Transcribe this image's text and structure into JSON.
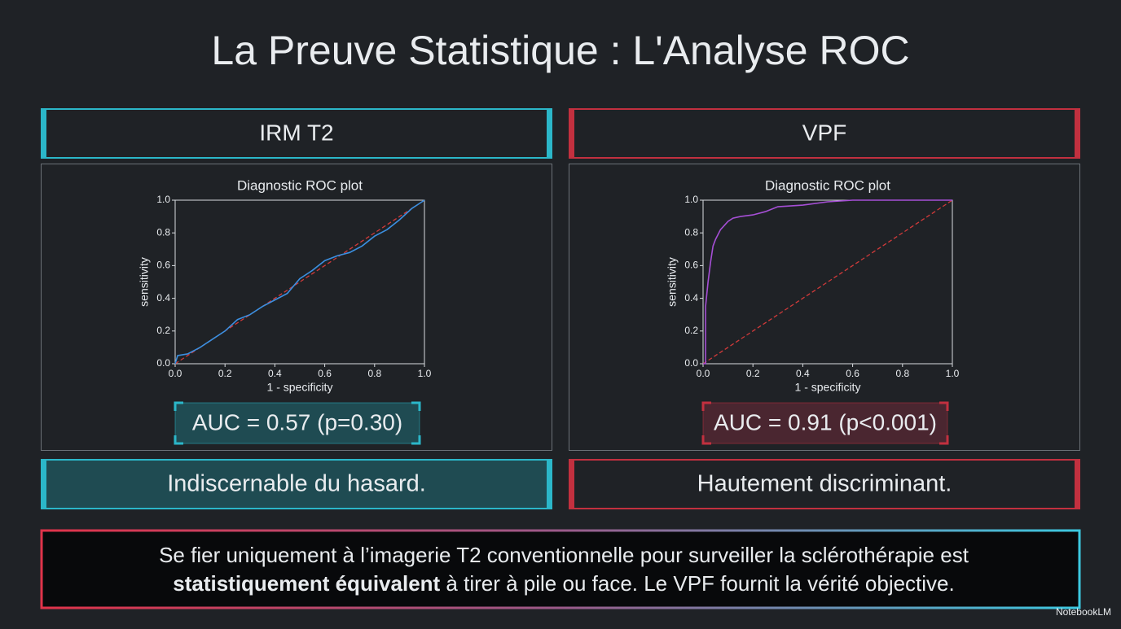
{
  "title": "La Preuve Statistique : L'Analyse ROC",
  "panels": [
    {
      "header": "IRM T2",
      "annotation": "AUC = 0.57 (p=0.30)",
      "verdict": "Indiscernable du hasard.",
      "accent": "#2bb7c9"
    },
    {
      "header": "VPF",
      "annotation": "AUC = 0.91 (p<0.001)",
      "verdict": "Hautement discriminant.",
      "accent": "#c2303f"
    }
  ],
  "conclusion": [
    "Se fier uniquement à l’imagerie T2 conventionnelle pour surveiller la sclérothérapie est",
    "statistiquement équivalent",
    " à tirer à pile ou face. Le VPF fournit la vérité objective."
  ],
  "footer": "NotebookLM",
  "chart_data": [
    {
      "type": "line",
      "title": "Diagnostic ROC plot",
      "x_label": "1 - specificity",
      "y_label": "sensitivity",
      "x": [
        0,
        0.01,
        0.05,
        0.1,
        0.15,
        0.2,
        0.25,
        0.3,
        0.35,
        0.4,
        0.45,
        0.5,
        0.55,
        0.6,
        0.65,
        0.7,
        0.75,
        0.8,
        0.85,
        0.9,
        0.95,
        1
      ],
      "values": [
        0,
        0.05,
        0.06,
        0.1,
        0.15,
        0.2,
        0.27,
        0.3,
        0.35,
        0.39,
        0.43,
        0.52,
        0.57,
        0.63,
        0.66,
        0.68,
        0.72,
        0.78,
        0.82,
        0.88,
        0.95,
        1
      ],
      "color": "#3b8fe0",
      "reference": {
        "x": [
          0,
          1
        ],
        "values": [
          0,
          1
        ],
        "color": "#d13a3a",
        "dashed": true
      },
      "xlim": [
        0,
        1
      ],
      "ylim": [
        0,
        1
      ],
      "xticks": [
        {
          "value": 0,
          "label": "0.0"
        },
        0.2,
        0.4,
        0.6,
        0.8,
        {
          "value": 1,
          "label": "1.0"
        }
      ],
      "yticks": [
        {
          "value": 0,
          "label": "0.0"
        },
        0.2,
        0.4,
        0.6,
        0.8,
        {
          "value": 1,
          "label": "1.0"
        }
      ]
    },
    {
      "type": "line",
      "title": "Diagnostic ROC plot",
      "x_label": "1 - specificity",
      "y_label": "sensitivity",
      "x": [
        0,
        0.01,
        0.01,
        0.02,
        0.03,
        0.04,
        0.05,
        0.07,
        0.1,
        0.12,
        0.15,
        0.2,
        0.25,
        0.3,
        0.4,
        0.5,
        0.6,
        0.7,
        0.8,
        0.9,
        1
      ],
      "values": [
        0,
        0,
        0.35,
        0.5,
        0.62,
        0.72,
        0.76,
        0.82,
        0.87,
        0.89,
        0.9,
        0.91,
        0.93,
        0.96,
        0.97,
        0.99,
        1,
        1,
        1,
        1,
        1
      ],
      "color": "#a64fd6",
      "reference": {
        "x": [
          0,
          1
        ],
        "values": [
          0,
          1
        ],
        "color": "#d13a3a",
        "dashed": true
      },
      "xlim": [
        0,
        1
      ],
      "ylim": [
        0,
        1
      ],
      "xticks": [
        {
          "value": 0,
          "label": "0.0"
        },
        0.2,
        0.4,
        0.6,
        0.8,
        {
          "value": 1,
          "label": "1.0"
        }
      ],
      "yticks": [
        {
          "value": 0,
          "label": "0.0"
        },
        0.2,
        0.4,
        0.6,
        0.8,
        {
          "value": 1,
          "label": "1.0"
        }
      ]
    }
  ]
}
